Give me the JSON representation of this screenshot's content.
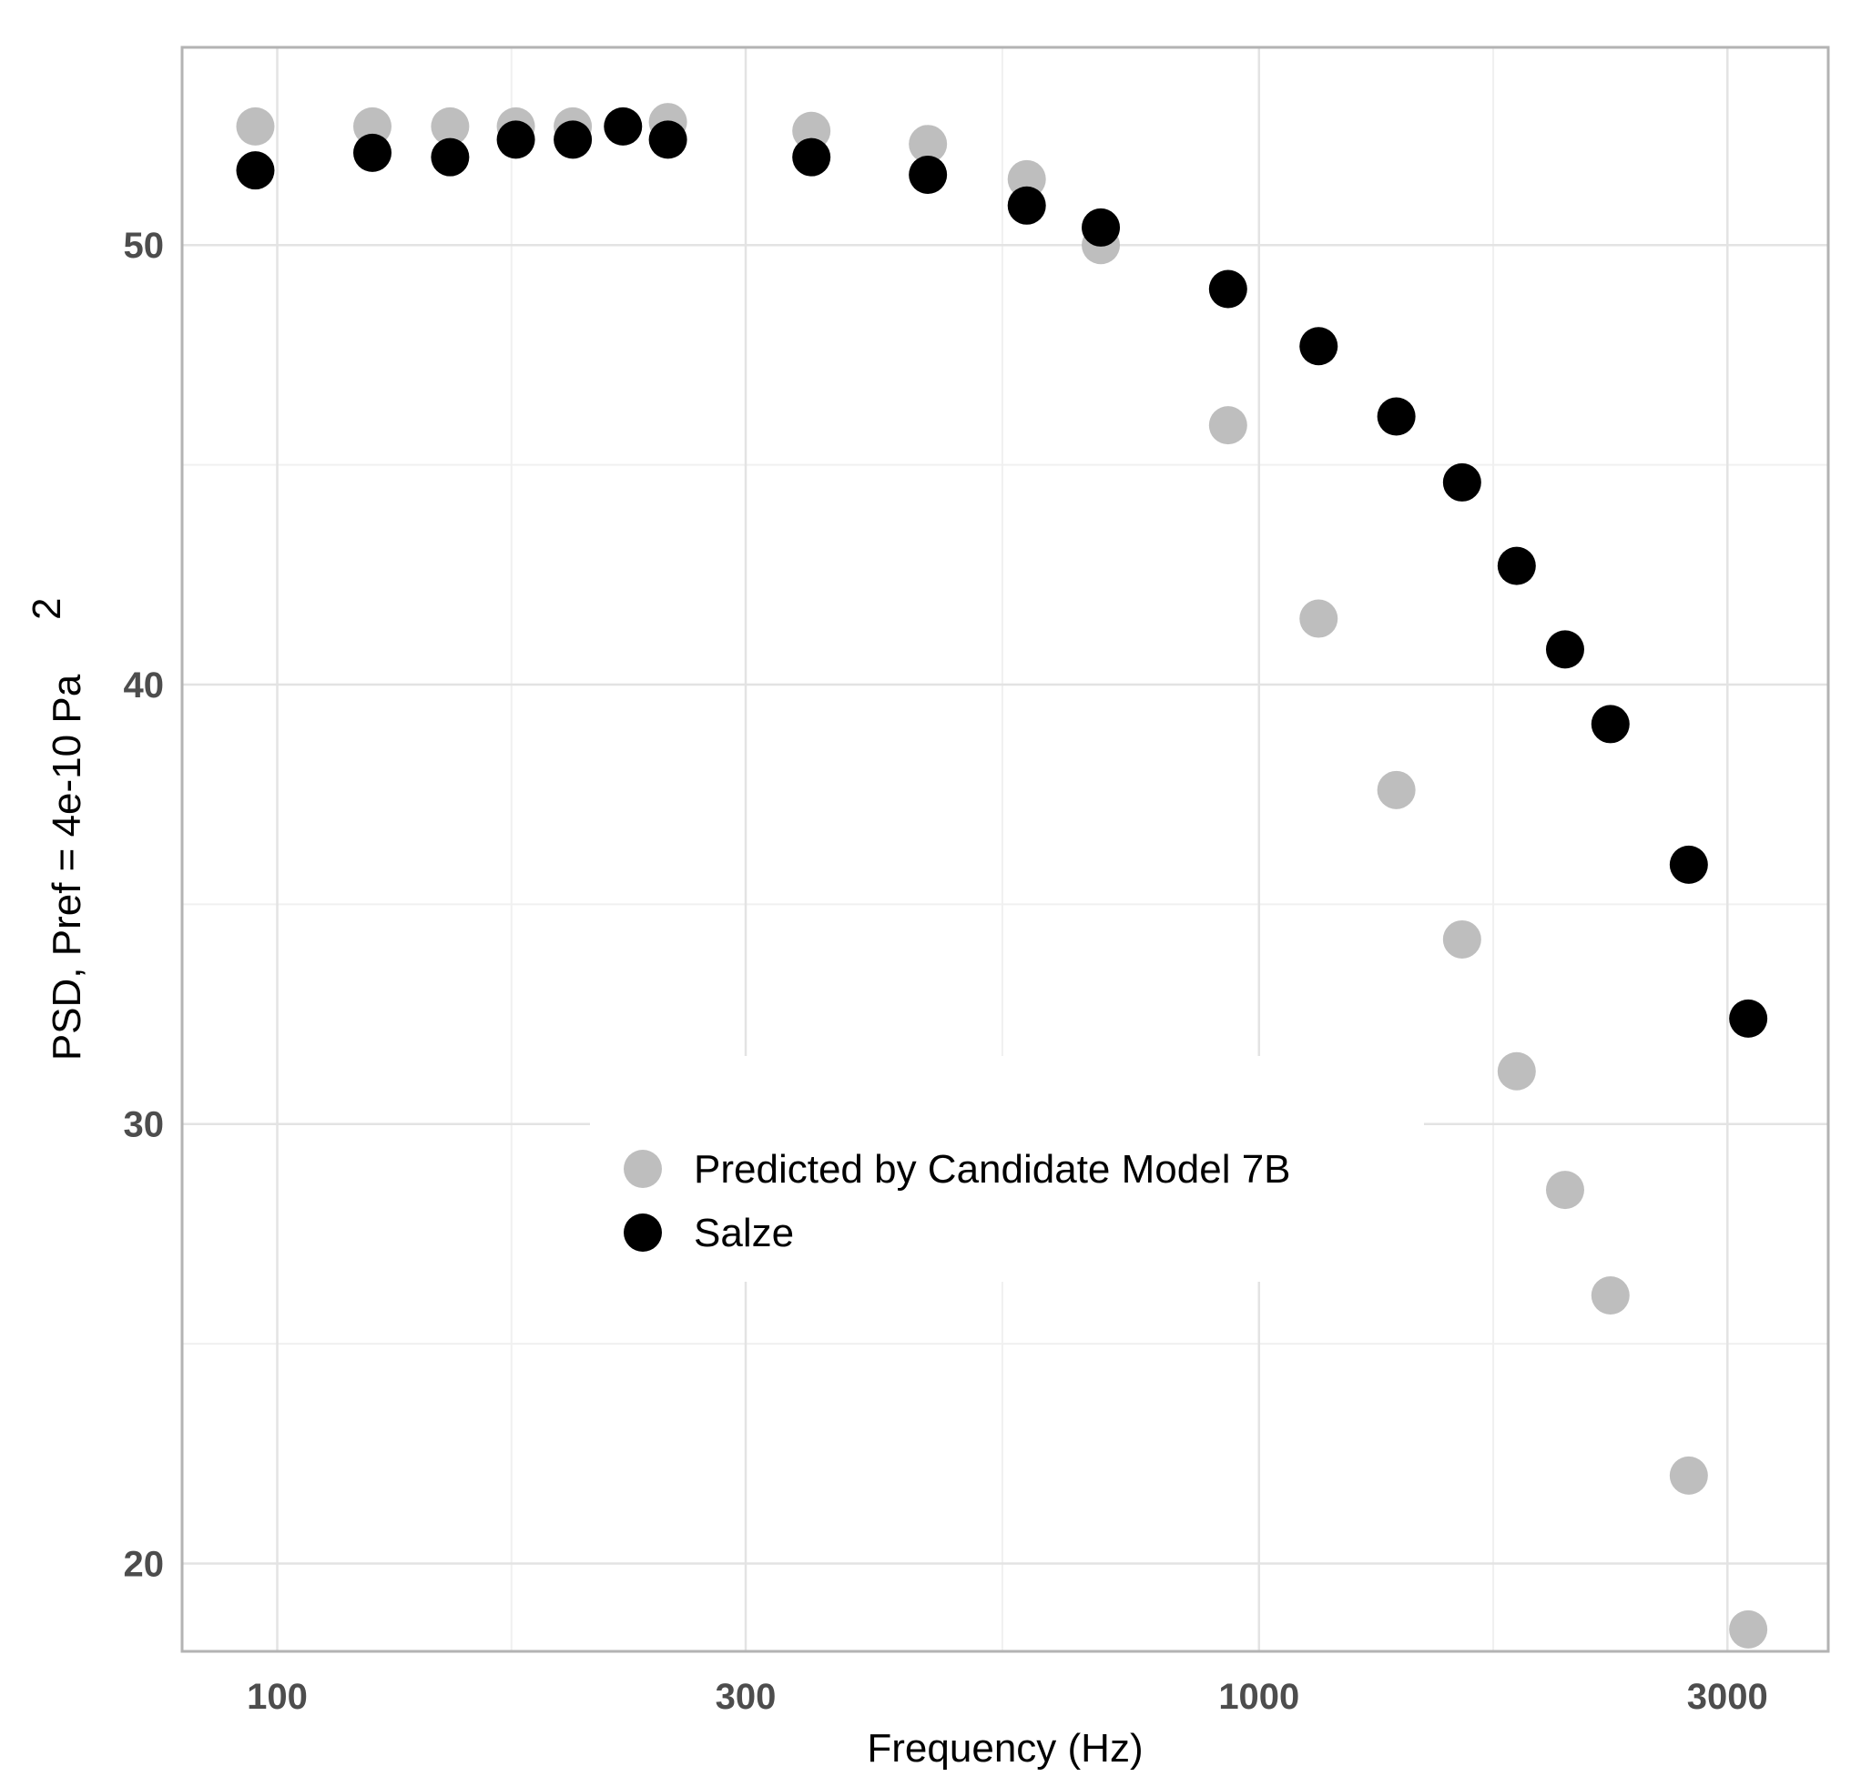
{
  "chart_data": {
    "type": "scatter",
    "title": "",
    "xlabel": "Frequency (Hz)",
    "ylabel": "PSD, Pref = 4e-10 Pa",
    "ylabel_superscript": "2",
    "x_scale": "log10",
    "xlim": [
      80,
      3800
    ],
    "ylim": [
      18,
      54.5
    ],
    "x_ticks": [
      100,
      300,
      1000,
      3000
    ],
    "x_tick_labels": [
      "100",
      "300",
      "1000",
      "3000"
    ],
    "y_ticks": [
      20,
      30,
      40,
      50
    ],
    "y_tick_labels": [
      "20",
      "30",
      "40",
      "50"
    ],
    "grid": true,
    "legend_position": "center",
    "series": [
      {
        "name": "Predicted by Candidate Model 7B",
        "color": "#bebebe",
        "x": [
          95,
          125,
          150,
          175,
          200,
          250,
          350,
          460,
          580,
          690,
          930,
          1150,
          1380,
          1610,
          1830,
          2050,
          2280,
          2740,
          3150
        ],
        "y": [
          52.7,
          52.7,
          52.7,
          52.7,
          52.7,
          52.8,
          52.6,
          52.3,
          51.5,
          50.0,
          45.9,
          41.5,
          37.6,
          34.2,
          31.2,
          28.5,
          26.1,
          22.0,
          18.5
        ]
      },
      {
        "name": "Salze",
        "color": "#000000",
        "x": [
          95,
          125,
          150,
          175,
          200,
          225,
          250,
          350,
          460,
          580,
          690,
          930,
          1150,
          1380,
          1610,
          1830,
          2050,
          2280,
          2740,
          3150
        ],
        "y": [
          51.7,
          52.1,
          52.0,
          52.4,
          52.4,
          52.7,
          52.4,
          52.0,
          51.6,
          50.9,
          50.4,
          49.0,
          47.7,
          46.1,
          44.6,
          42.7,
          40.8,
          39.1,
          35.9,
          32.4
        ]
      }
    ]
  }
}
